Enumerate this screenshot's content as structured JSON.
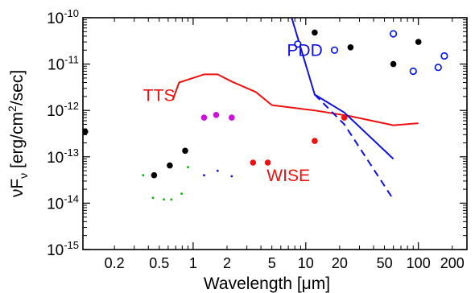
{
  "chart_data": {
    "type": "scatter",
    "xlabel": "Wavelength  [μm]",
    "ylabel_main": "νF",
    "ylabel_sub": "ν",
    "ylabel_units_pre": " [erg/cm",
    "ylabel_units_exp": "2",
    "ylabel_units_post": "/sec]",
    "x_scale": "log",
    "y_scale": "log",
    "xlim": [
      0.105,
      270
    ],
    "ylim": [
      1e-15,
      1e-10
    ],
    "x_ticks": [
      {
        "value": 0.2,
        "label": "0.2"
      },
      {
        "value": 0.5,
        "label": "0.5"
      },
      {
        "value": 1,
        "label": "1"
      },
      {
        "value": 2,
        "label": "2"
      },
      {
        "value": 5,
        "label": "5"
      },
      {
        "value": 10,
        "label": "10"
      },
      {
        "value": 20,
        "label": "20"
      },
      {
        "value": 50,
        "label": "50"
      },
      {
        "value": 100,
        "label": "100"
      },
      {
        "value": 200,
        "label": "200"
      }
    ],
    "y_ticks": [
      {
        "value": 1e-15,
        "base": "10",
        "exp": "-15"
      },
      {
        "value": 1e-14,
        "base": "10",
        "exp": "-14"
      },
      {
        "value": 1e-13,
        "base": "10",
        "exp": "-13"
      },
      {
        "value": 1e-12,
        "base": "10",
        "exp": "-12"
      },
      {
        "value": 1e-11,
        "base": "10",
        "exp": "-11"
      },
      {
        "value": 1e-10,
        "base": "10",
        "exp": "-10"
      }
    ],
    "lines": [
      {
        "name": "TTS",
        "color": "#ee1111",
        "dash": false,
        "points": [
          [
            0.66,
            1.7e-12
          ],
          [
            0.75,
            4e-12
          ],
          [
            1.25,
            6e-12
          ],
          [
            1.65,
            6e-12
          ],
          [
            2.2,
            4.2e-12
          ],
          [
            3.6,
            2.5e-12
          ],
          [
            5.0,
            1.3e-12
          ],
          [
            12,
            1e-12
          ],
          [
            25,
            7.5e-13
          ],
          [
            60,
            4.8e-13
          ],
          [
            100,
            5.3e-13
          ]
        ]
      },
      {
        "name": "PDD",
        "color": "#1111dd",
        "dash": false,
        "points": [
          [
            7.5,
            1e-10
          ],
          [
            12,
            2.2e-12
          ],
          [
            22,
            9e-13
          ],
          [
            60,
            9e-14
          ]
        ]
      },
      {
        "name": "",
        "color": "#1111dd",
        "dash": true,
        "points": [
          [
            12,
            2.2e-12
          ],
          [
            22,
            5e-13
          ],
          [
            60,
            1.2e-14
          ]
        ]
      }
    ],
    "series": [
      {
        "name": "",
        "color": "#000000",
        "marker": "filled",
        "size": "large",
        "points": [
          [
            0.11,
            3.5e-13
          ],
          [
            0.45,
            4e-14
          ],
          [
            0.62,
            6.5e-14
          ],
          [
            0.85,
            1.35e-13
          ],
          [
            12,
            4.8e-11
          ],
          [
            25,
            2.3e-11
          ],
          [
            60,
            1e-11
          ],
          [
            100,
            3e-11
          ]
        ]
      },
      {
        "name": "",
        "color": "#0011dd",
        "marker": "open",
        "size": "large",
        "points": [
          [
            8.5,
            2.7e-11
          ],
          [
            18,
            2e-11
          ],
          [
            60,
            4.5e-11
          ],
          [
            90,
            7e-12
          ],
          [
            150,
            8.5e-12
          ],
          [
            170,
            1.5e-11
          ]
        ]
      },
      {
        "name": "",
        "color": "#cc11dd",
        "marker": "filled",
        "size": "large",
        "points": [
          [
            1.25,
            7e-13
          ],
          [
            1.6,
            8e-13
          ],
          [
            2.2,
            7e-13
          ]
        ]
      },
      {
        "name": "WISE",
        "color": "#ee1111",
        "marker": "filled",
        "size": "large",
        "points": [
          [
            3.4,
            7.5e-14
          ],
          [
            4.6,
            7.5e-14
          ],
          [
            12,
            2.2e-13
          ],
          [
            22,
            7e-13
          ]
        ]
      },
      {
        "name": "",
        "color": "#11aa11",
        "marker": "filled",
        "size": "small",
        "points": [
          [
            0.36,
            4e-14
          ],
          [
            0.44,
            1.3e-14
          ],
          [
            0.55,
            1.2e-14
          ],
          [
            0.64,
            1.2e-14
          ],
          [
            0.79,
            1.6e-14
          ],
          [
            0.9,
            6e-14
          ]
        ]
      },
      {
        "name": "",
        "color": "#1111dd",
        "marker": "filled",
        "size": "small",
        "points": [
          [
            1.25,
            4e-14
          ],
          [
            1.65,
            5e-14
          ],
          [
            2.2,
            3.8e-14
          ]
        ]
      }
    ],
    "annotations": [
      {
        "text": "PDD",
        "color": "#1111dd",
        "x": 6.8,
        "y": 1.5e-11
      },
      {
        "text": "TTS",
        "color": "#ee1111",
        "x": 0.36,
        "y": 1.6e-12
      },
      {
        "text": "WISE",
        "color": "#ee1111",
        "x": 4.5,
        "y": 3e-14
      }
    ]
  }
}
